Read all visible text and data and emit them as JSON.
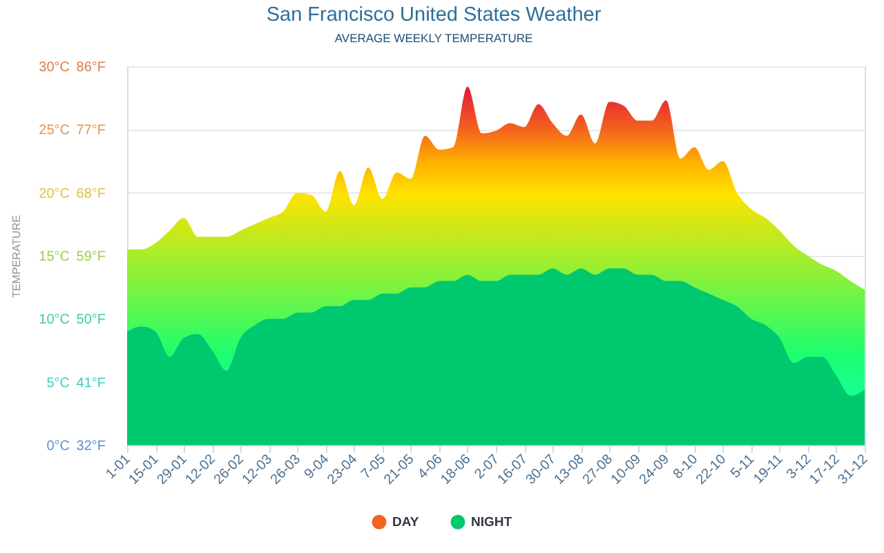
{
  "chart_data": {
    "type": "area",
    "title": "San Francisco United States Weather",
    "subtitle": "AVERAGE WEEKLY TEMPERATURE",
    "ylabel": "TEMPERATURE",
    "categories": [
      "1-01",
      null,
      "15-01",
      null,
      "29-01",
      null,
      "12-02",
      null,
      "26-02",
      null,
      "12-03",
      null,
      "26-03",
      null,
      "9-04",
      null,
      "23-04",
      null,
      "7-05",
      null,
      "21-05",
      null,
      "4-06",
      null,
      "18-06",
      null,
      "2-07",
      null,
      "16-07",
      null,
      "30-07",
      null,
      "13-08",
      null,
      "27-08",
      null,
      "10-09",
      null,
      "24-09",
      null,
      "8-10",
      null,
      "22-10",
      null,
      "5-11",
      null,
      "19-11",
      null,
      "3-12",
      null,
      "17-12",
      null,
      "31-12"
    ],
    "series": [
      {
        "name": "DAY",
        "color": "#f4631e",
        "values": [
          15.5,
          15.5,
          16.0,
          17.0,
          18.0,
          16.5,
          16.5,
          16.5,
          17.0,
          17.5,
          18.0,
          18.5,
          20.0,
          19.8,
          18.5,
          21.7,
          19.0,
          22.0,
          19.5,
          21.6,
          21.1,
          24.5,
          23.4,
          23.6,
          28.4,
          24.7,
          24.9,
          25.5,
          25.2,
          27.0,
          25.5,
          24.5,
          26.2,
          23.9,
          27.2,
          26.9,
          25.7,
          25.7,
          27.3,
          22.7,
          23.6,
          21.8,
          22.5,
          20.0,
          18.7,
          18.0,
          17.0,
          15.8,
          15.0,
          14.3,
          13.8,
          13.0,
          12.3
        ]
      },
      {
        "name": "NIGHT",
        "color": "#00c86e",
        "values": [
          9.0,
          9.4,
          9.0,
          7.0,
          8.5,
          8.8,
          7.5,
          5.9,
          8.5,
          9.5,
          10.0,
          10.0,
          10.5,
          10.5,
          11.0,
          11.0,
          11.5,
          11.5,
          12.0,
          12.0,
          12.5,
          12.5,
          13.0,
          13.0,
          13.5,
          13.0,
          13.0,
          13.5,
          13.5,
          13.5,
          14.0,
          13.5,
          14.0,
          13.5,
          14.0,
          14.0,
          13.5,
          13.5,
          13.0,
          13.0,
          12.5,
          12.0,
          11.5,
          11.0,
          10.0,
          9.5,
          8.5,
          6.5,
          7.0,
          7.0,
          5.5,
          3.9,
          4.4
        ]
      }
    ],
    "ylim": [
      0,
      30
    ],
    "yticks": [
      {
        "value": 0,
        "label": "0°C"
      },
      {
        "value": 5,
        "label": "5°C"
      },
      {
        "value": 10,
        "label": "10°C"
      },
      {
        "value": 15,
        "label": "15°C"
      },
      {
        "value": 20,
        "label": "20°C"
      },
      {
        "value": 25,
        "label": "25°C"
      },
      {
        "value": 30,
        "label": "30°C"
      }
    ],
    "y2lim": [
      32,
      86
    ],
    "y2ticks": [
      {
        "value": 32,
        "label": "32°F"
      },
      {
        "value": 41,
        "label": "41°F"
      },
      {
        "value": 50,
        "label": "50°F"
      },
      {
        "value": 59,
        "label": "59°F"
      },
      {
        "value": 68,
        "label": "68°F"
      },
      {
        "value": 77,
        "label": "77°F"
      },
      {
        "value": 86,
        "label": "86°F"
      }
    ],
    "grid": "y",
    "legend": "bottom"
  }
}
